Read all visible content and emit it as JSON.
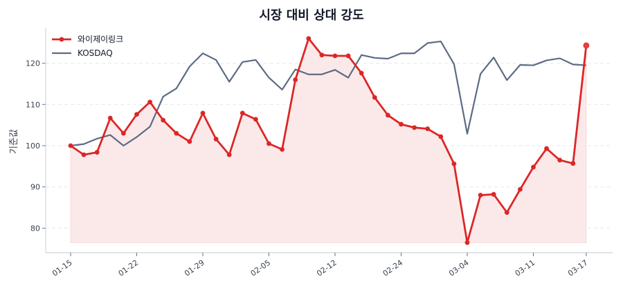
{
  "chart_data": {
    "type": "line",
    "title": "시장 대비 상대 강도",
    "xlabel": "",
    "ylabel": "기준값",
    "ylim": [
      74.5,
      128.5
    ],
    "yticks": [
      80,
      90,
      100,
      110,
      120
    ],
    "xtick_labels": [
      "01-15",
      "01-22",
      "01-29",
      "02-05",
      "02-12",
      "02-24",
      "03-04",
      "03-11",
      "03-17"
    ],
    "xtick_indices": [
      0,
      5,
      10,
      15,
      20,
      25,
      30,
      35,
      39
    ],
    "grid": "horizontal dashed",
    "legend_position": "upper left",
    "series": [
      {
        "name": "와이제이링크",
        "color": "#dc2626",
        "markers": true,
        "fill": true,
        "fill_color": "#fbe9e9",
        "values": [
          100.0,
          97.8,
          98.4,
          106.7,
          103.0,
          107.6,
          110.6,
          106.2,
          103.0,
          101.0,
          107.9,
          101.6,
          97.8,
          107.9,
          106.4,
          100.5,
          99.1,
          116.0,
          126.0,
          122.0,
          121.8,
          121.8,
          117.6,
          111.7,
          107.4,
          105.2,
          104.4,
          104.1,
          102.2,
          95.6,
          76.5,
          88.0,
          88.2,
          83.8,
          89.4,
          94.8,
          99.3,
          96.5,
          95.7,
          124.3
        ]
      },
      {
        "name": "KOSDAQ",
        "color": "#5b6b84",
        "markers": false,
        "values": [
          100.0,
          100.4,
          101.7,
          102.6,
          100.0,
          102.1,
          104.6,
          111.9,
          113.9,
          119.2,
          122.4,
          120.8,
          115.5,
          120.3,
          120.8,
          116.5,
          113.6,
          118.5,
          117.3,
          117.3,
          118.4,
          116.5,
          122.0,
          121.3,
          121.1,
          122.4,
          122.4,
          124.9,
          125.3,
          119.8,
          102.9,
          117.4,
          121.4,
          115.9,
          119.6,
          119.5,
          120.7,
          121.2,
          119.7,
          119.5
        ]
      }
    ]
  }
}
